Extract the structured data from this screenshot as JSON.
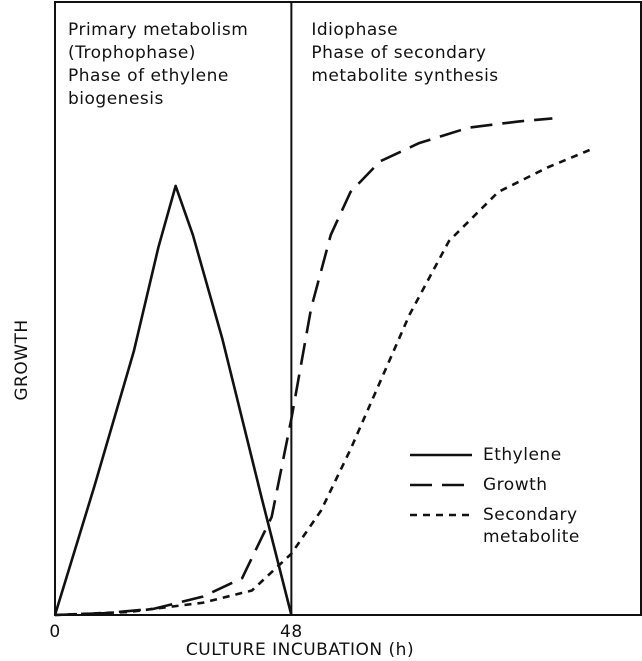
{
  "chart_data": {
    "type": "line",
    "xlabel": "CULTURE INCUBATION (h)",
    "ylabel": "GROWTH",
    "xlim": [
      0,
      119
    ],
    "ylim": [
      0,
      100
    ],
    "xticks": [
      0,
      48
    ],
    "annotations": [
      {
        "lines": [
          "Primary metabolism",
          "(Trophophase)",
          "Phase of ethylene",
          "biogenesis"
        ]
      },
      {
        "lines": [
          "Idiophase",
          "Phase of secondary",
          "metabolite synthesis"
        ]
      }
    ],
    "legend": "lower right",
    "series": [
      {
        "name": "Ethylene",
        "color": "#111111",
        "style": "solid",
        "x": [
          0,
          8,
          16,
          21,
          24.5,
          28,
          34,
          42,
          48
        ],
        "values": [
          0,
          21,
          43,
          60,
          70,
          62,
          45,
          19,
          0
        ]
      },
      {
        "name": "Growth",
        "color": "#111111",
        "style": "dashed",
        "x": [
          0,
          10,
          20,
          30,
          38,
          44,
          48,
          52,
          56,
          60,
          66,
          74,
          84,
          94,
          101
        ],
        "values": [
          0,
          0.3,
          1,
          3,
          6,
          16,
          32,
          50,
          62,
          69,
          74,
          77,
          79.5,
          80.5,
          81
        ]
      },
      {
        "name": "Secondary metabolite",
        "color": "#111111",
        "style": "dotted",
        "x": [
          0,
          15,
          30,
          40,
          48,
          54,
          60,
          66,
          72,
          80,
          90,
          100,
          109
        ],
        "values": [
          0,
          0.5,
          2,
          4,
          10,
          17,
          27,
          38,
          49,
          61,
          69,
          73,
          76
        ]
      }
    ]
  }
}
